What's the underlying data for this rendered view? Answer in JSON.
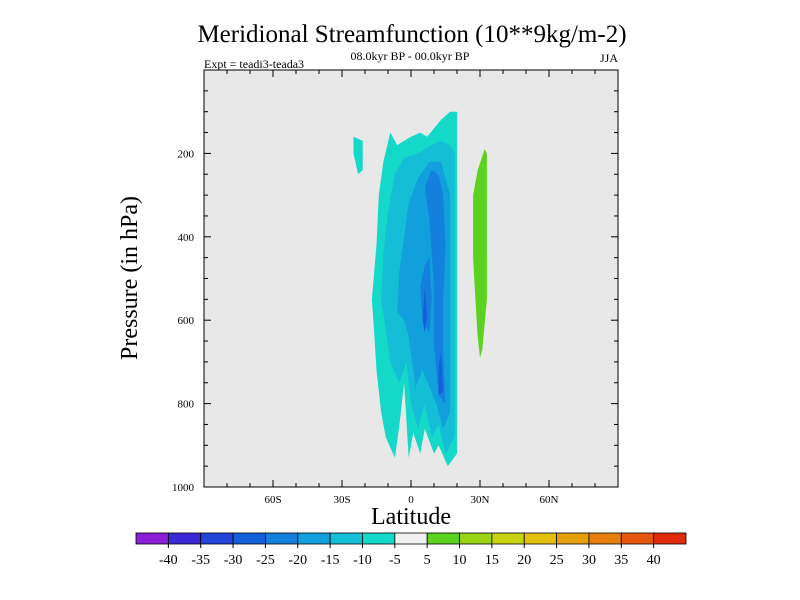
{
  "chart_data": {
    "type": "contour",
    "title": "Meridional Streamfunction (10**9kg/m-2)",
    "subtitle": "08.0kyr BP - 00.0kyr BP",
    "experiment_label": "Expt = teadi3-teada3",
    "season": "JJA",
    "xlabel": "Latitude",
    "ylabel": "Pressure (in hPa)",
    "xlim": [
      -90,
      90
    ],
    "ylim": [
      1000,
      0
    ],
    "x_ticks": [
      {
        "value": -60,
        "label": "60S"
      },
      {
        "value": -30,
        "label": "30S"
      },
      {
        "value": 0,
        "label": "0"
      },
      {
        "value": 30,
        "label": "30N"
      },
      {
        "value": 60,
        "label": "60N"
      }
    ],
    "y_ticks": [
      {
        "value": 200,
        "label": "200"
      },
      {
        "value": 400,
        "label": "400"
      },
      {
        "value": 600,
        "label": "600"
      },
      {
        "value": 800,
        "label": "800"
      },
      {
        "value": 1000,
        "label": "1000"
      }
    ],
    "background_color": "#e8e8e8",
    "colorbar": {
      "levels": [
        -40,
        -35,
        -30,
        -25,
        -20,
        -15,
        -10,
        -5,
        5,
        10,
        15,
        20,
        25,
        30,
        35,
        40
      ],
      "labels": [
        "-40",
        "-35",
        "-30",
        "-25",
        "-20",
        "-15",
        "-10",
        "-5",
        "5",
        "10",
        "15",
        "20",
        "25",
        "30",
        "35",
        "40"
      ],
      "colors": [
        "#8a1ed6",
        "#3a2ad6",
        "#2244d8",
        "#1460da",
        "#1280dc",
        "#12a0dc",
        "#14bed6",
        "#14d8c8",
        "#f0f0f0",
        "#5ad21e",
        "#9ad214",
        "#c8d20e",
        "#e4c00a",
        "#e6a00c",
        "#e67e0e",
        "#e6560e",
        "#e02a0a"
      ]
    },
    "contours": [
      {
        "label": "-10 to -5",
        "color": "#14d8c8",
        "polygons": [
          [
            [
              17,
              10
            ],
            [
              20,
              10
            ],
            [
              20,
              92
            ],
            [
              16,
              95
            ],
            [
              12,
              90
            ],
            [
              10,
              92
            ],
            [
              6,
              86
            ],
            [
              4,
              92
            ],
            [
              1,
              87
            ],
            [
              -1,
              93
            ],
            [
              -3,
              75
            ],
            [
              -5,
              85
            ],
            [
              -7,
              93
            ],
            [
              -11,
              88
            ],
            [
              -13,
              82
            ],
            [
              -15,
              72
            ],
            [
              -16,
              63
            ],
            [
              -17,
              55
            ],
            [
              -15,
              42
            ],
            [
              -14,
              30
            ],
            [
              -12,
              22
            ],
            [
              -9,
              15
            ],
            [
              -6,
              18
            ],
            [
              -3,
              17
            ],
            [
              0,
              16
            ],
            [
              4,
              15
            ],
            [
              7,
              16
            ],
            [
              10,
              14
            ],
            [
              13,
              12
            ]
          ],
          [
            [
              -25,
              16
            ],
            [
              -21,
              17
            ],
            [
              -21,
              24
            ],
            [
              -23,
              25
            ],
            [
              -25,
              20
            ]
          ]
        ]
      },
      {
        "label": "-15 to -10",
        "color": "#14bed6",
        "polygons": [
          [
            [
              19,
              20
            ],
            [
              19,
              88
            ],
            [
              15,
              92
            ],
            [
              12,
              85
            ],
            [
              9,
              88
            ],
            [
              6,
              80
            ],
            [
              3,
              86
            ],
            [
              0,
              80
            ],
            [
              -2,
              70
            ],
            [
              -5,
              75
            ],
            [
              -9,
              70
            ],
            [
              -11,
              62
            ],
            [
              -13,
              55
            ],
            [
              -12,
              44
            ],
            [
              -10,
              34
            ],
            [
              -7,
              25
            ],
            [
              -3,
              21
            ],
            [
              3,
              20
            ],
            [
              9,
              18
            ],
            [
              13,
              17
            ],
            [
              17,
              18
            ]
          ]
        ]
      },
      {
        "label": "-20 to -15",
        "color": "#12a0dc",
        "polygons": [
          [
            [
              17,
              30
            ],
            [
              17,
              82
            ],
            [
              14,
              86
            ],
            [
              11,
              80
            ],
            [
              8,
              76
            ],
            [
              5,
              72
            ],
            [
              2,
              76
            ],
            [
              -1,
              64
            ],
            [
              -3,
              60
            ],
            [
              -6,
              58
            ],
            [
              -5,
              48
            ],
            [
              -3,
              40
            ],
            [
              -1,
              32
            ],
            [
              3,
              26
            ],
            [
              8,
              22
            ],
            [
              13,
              22
            ]
          ]
        ]
      },
      {
        "label": "-25 to -20",
        "color": "#1280dc",
        "polygons": [
          [
            [
              14,
              30
            ],
            [
              15,
              42
            ],
            [
              14,
              55
            ],
            [
              14,
              68
            ],
            [
              15,
              80
            ],
            [
              12,
              78
            ],
            [
              10,
              66
            ],
            [
              10,
              52
            ],
            [
              8,
              36
            ],
            [
              6,
              28
            ],
            [
              9,
              24
            ],
            [
              12,
              25
            ]
          ],
          [
            [
              8,
              45
            ],
            [
              9,
              55
            ],
            [
              8,
              63
            ],
            [
              5,
              60
            ],
            [
              4,
              52
            ],
            [
              6,
              47
            ]
          ]
        ]
      },
      {
        "label": "-30 to -25",
        "color": "#1460da",
        "polygons": [
          [
            [
              6,
              52
            ],
            [
              7,
              59
            ],
            [
              6,
              63
            ],
            [
              5,
              60
            ]
          ],
          [
            [
              13,
              68
            ],
            [
              14,
              77
            ],
            [
              12,
              78
            ],
            [
              12,
              71
            ]
          ]
        ]
      },
      {
        "label": "5 to 10",
        "color": "#5ad21e",
        "polygons": [
          [
            [
              32,
              19
            ],
            [
              33,
              20
            ],
            [
              33,
              38
            ],
            [
              33,
              55
            ],
            [
              31,
              67
            ],
            [
              30,
              69
            ],
            [
              29,
              64
            ],
            [
              28,
              55
            ],
            [
              27,
              45
            ],
            [
              27,
              30
            ],
            [
              29,
              24
            ]
          ]
        ]
      }
    ]
  }
}
